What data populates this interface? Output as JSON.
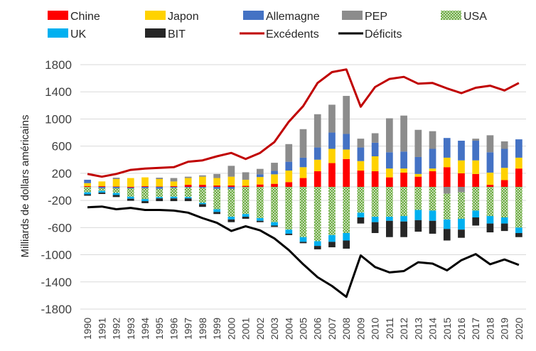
{
  "chart_data": {
    "type": "bar",
    "stacked": true,
    "ylabel": "Milliards de dollars américains",
    "xlabel": "",
    "ylim": [
      -1800,
      1800
    ],
    "yticks": [
      1800,
      1400,
      1000,
      600,
      200,
      -200,
      -600,
      -1000,
      -1400,
      -1800
    ],
    "grid": true,
    "legend_position": "top",
    "categories": [
      "1990",
      "1991",
      "1992",
      "1993",
      "1994",
      "1995",
      "1996",
      "1997",
      "1998",
      "1999",
      "2000",
      "2001",
      "2002",
      "2003",
      "2004",
      "2005",
      "2006",
      "2007",
      "2008",
      "2009",
      "2010",
      "2011",
      "2012",
      "2013",
      "2014",
      "2015",
      "2016",
      "2017",
      "2018",
      "2019",
      "2020"
    ],
    "series": [
      {
        "name": "Chine",
        "kind": "bar",
        "color": "#ff0000",
        "pattern": "solid",
        "values": [
          10,
          10,
          5,
          -10,
          10,
          5,
          10,
          30,
          30,
          20,
          20,
          15,
          35,
          45,
          70,
          130,
          230,
          350,
          410,
          240,
          230,
          140,
          210,
          150,
          230,
          290,
          200,
          190,
          30,
          100,
          270
        ]
      },
      {
        "name": "Japon",
        "kind": "bar",
        "color": "#ffd200",
        "pattern": "solid",
        "values": [
          45,
          70,
          110,
          130,
          130,
          110,
          70,
          100,
          120,
          110,
          130,
          90,
          110,
          140,
          170,
          160,
          170,
          210,
          140,
          140,
          220,
          130,
          60,
          40,
          40,
          140,
          190,
          200,
          180,
          180,
          160
        ]
      },
      {
        "name": "Allemagne",
        "kind": "bar",
        "color": "#4472c4",
        "pattern": "solid",
        "values": [
          50,
          -20,
          -20,
          -15,
          -20,
          -30,
          -15,
          -10,
          -15,
          -30,
          -30,
          0,
          40,
          50,
          130,
          140,
          180,
          240,
          230,
          200,
          200,
          240,
          250,
          250,
          290,
          290,
          290,
          290,
          300,
          280,
          270
        ]
      },
      {
        "name": "PEP",
        "kind": "bar",
        "color": "#8c8c8c",
        "pattern": "solid",
        "values": [
          0,
          0,
          20,
          0,
          0,
          20,
          50,
          20,
          20,
          60,
          160,
          110,
          80,
          120,
          260,
          420,
          490,
          410,
          560,
          130,
          140,
          500,
          530,
          400,
          260,
          -100,
          -80,
          30,
          250,
          110,
          0
        ]
      },
      {
        "name": "USA",
        "kind": "bar",
        "color": "#70ad47",
        "pattern": "dotted",
        "values": [
          -80,
          -40,
          -70,
          -120,
          -160,
          -120,
          -130,
          -140,
          -220,
          -300,
          -410,
          -400,
          -460,
          -520,
          -630,
          -740,
          -800,
          -710,
          -680,
          -380,
          -440,
          -440,
          -430,
          -340,
          -350,
          -380,
          -390,
          -350,
          -430,
          -450,
          -600
        ]
      },
      {
        "name": "UK",
        "kind": "bar",
        "color": "#00b0f0",
        "pattern": "solid",
        "values": [
          -30,
          -25,
          -30,
          -30,
          -30,
          -20,
          -25,
          -20,
          -20,
          -40,
          -40,
          -40,
          -40,
          -50,
          -60,
          -70,
          -70,
          -100,
          -110,
          -70,
          -80,
          -60,
          -80,
          -150,
          -150,
          -140,
          -160,
          -100,
          -110,
          -90,
          -80
        ]
      },
      {
        "name": "BIT",
        "kind": "bar",
        "color": "#262626",
        "pattern": "solid",
        "values": [
          -20,
          -20,
          -30,
          -30,
          -30,
          -40,
          -40,
          -40,
          -40,
          -30,
          -40,
          -30,
          -20,
          -20,
          -20,
          -20,
          -50,
          -80,
          -120,
          -90,
          -160,
          -240,
          -230,
          -170,
          -190,
          -170,
          -120,
          -120,
          -130,
          -110,
          -60
        ]
      },
      {
        "name": "Excédents",
        "kind": "line",
        "color": "#c00000",
        "values": [
          190,
          150,
          190,
          250,
          270,
          280,
          290,
          370,
          390,
          450,
          500,
          410,
          500,
          660,
          960,
          1190,
          1530,
          1690,
          1730,
          1180,
          1470,
          1590,
          1620,
          1520,
          1530,
          1450,
          1380,
          1460,
          1490,
          1420,
          1530
        ]
      },
      {
        "name": "Déficits",
        "kind": "line",
        "color": "#000000",
        "values": [
          -300,
          -290,
          -330,
          -310,
          -340,
          -340,
          -350,
          -380,
          -460,
          -530,
          -650,
          -580,
          -640,
          -760,
          -930,
          -1140,
          -1330,
          -1460,
          -1620,
          -1010,
          -1180,
          -1260,
          -1240,
          -1110,
          -1130,
          -1230,
          -1080,
          -990,
          -1140,
          -1070,
          -1150
        ]
      }
    ]
  }
}
